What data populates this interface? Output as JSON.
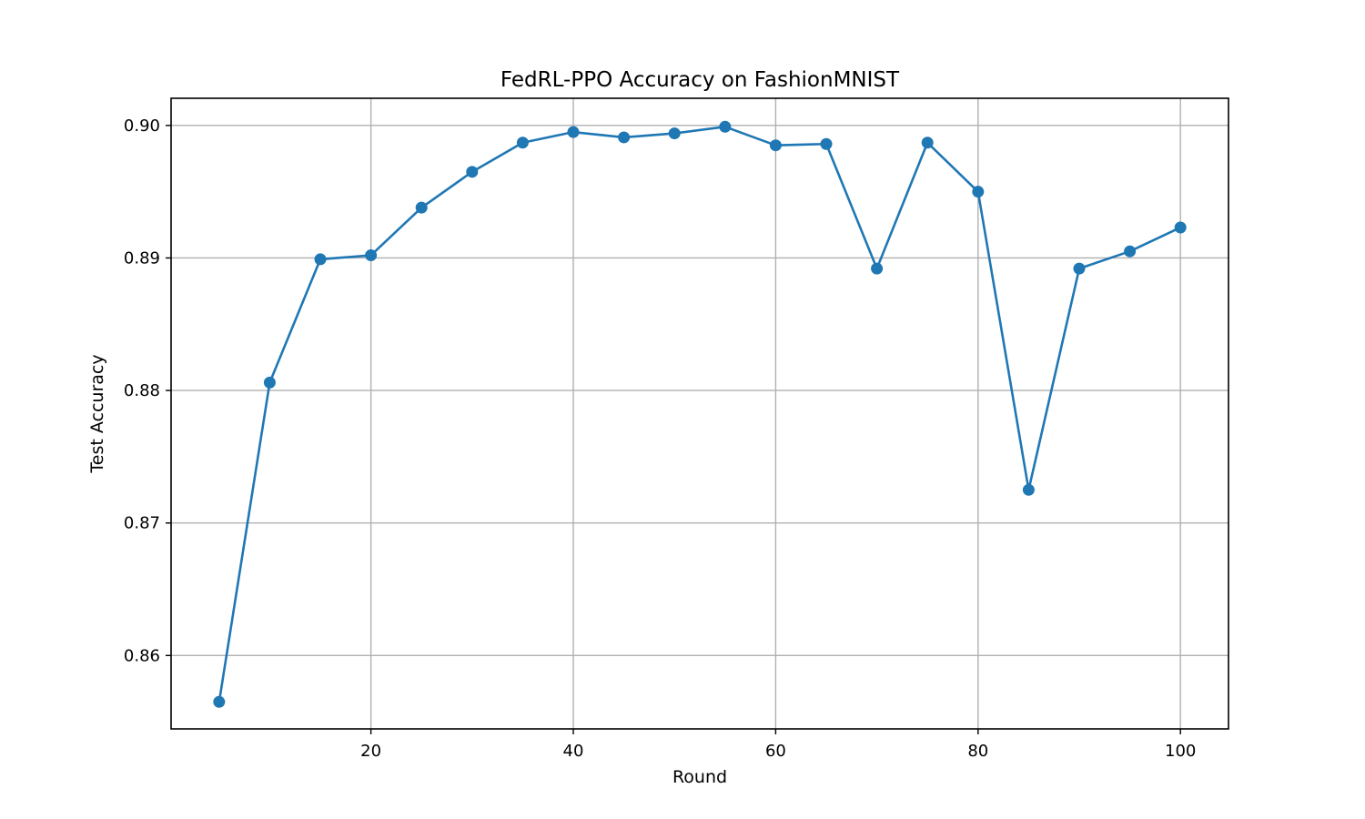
{
  "chart_data": {
    "type": "line",
    "title": "FedRL-PPO Accuracy on FashionMNIST",
    "xlabel": "Round",
    "ylabel": "Test Accuracy",
    "xlim": [
      0.25,
      104.75
    ],
    "ylim": [
      0.85446,
      0.90205
    ],
    "xticks": [
      20,
      40,
      60,
      80,
      100
    ],
    "xtick_labels": [
      "20",
      "40",
      "60",
      "80",
      "100"
    ],
    "yticks": [
      0.86,
      0.87,
      0.88,
      0.89,
      0.9
    ],
    "ytick_labels": [
      "0.86",
      "0.87",
      "0.88",
      "0.89",
      "0.90"
    ],
    "grid": true,
    "series": [
      {
        "color": "#1f77b4",
        "marker": "circle",
        "x": [
          5,
          10,
          15,
          20,
          25,
          30,
          35,
          40,
          45,
          50,
          55,
          60,
          65,
          70,
          75,
          80,
          85,
          90,
          95,
          100
        ],
        "y": [
          0.8565,
          0.8806,
          0.8899,
          0.8902,
          0.8938,
          0.8965,
          0.8987,
          0.8995,
          0.8991,
          0.8994,
          0.8999,
          0.8985,
          0.8986,
          0.8892,
          0.8987,
          0.895,
          0.8725,
          0.8892,
          0.8905,
          0.8923
        ]
      }
    ]
  }
}
